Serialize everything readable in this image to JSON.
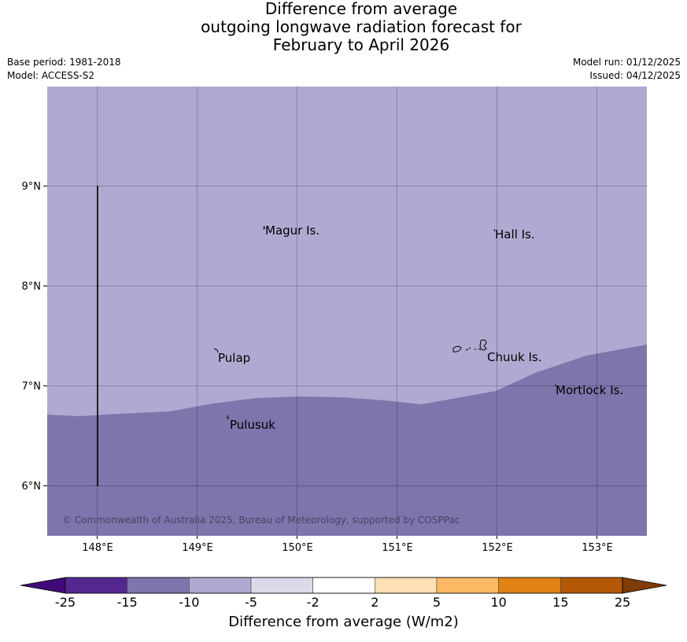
{
  "title": {
    "line1": "Difference from average",
    "line2": "outgoing longwave radiation forecast for",
    "line3": "February to April 2026"
  },
  "meta": {
    "base_period": "Base period: 1981-2018",
    "model": "Model: ACCESS-S2",
    "model_run": "Model run: 01/12/2025",
    "issued": "Issued: 04/12/2025"
  },
  "map": {
    "lon_ticks": [
      "148°E",
      "149°E",
      "150°E",
      "151°E",
      "152°E",
      "153°E"
    ],
    "lat_ticks": [
      "9°N",
      "8°N",
      "7°N",
      "6°N"
    ],
    "places": [
      "Magur Is.",
      "Hall Is.",
      "Pulap",
      "Chuuk Is.",
      "Mortlock Is.",
      "Pulusuk"
    ],
    "copyright": "© Commonwealth of Australia 2025, Bureau of Meteorology, supported by COSPPac",
    "colors": {
      "background_class": "#b0aad2",
      "lower_class": "#7f74ab"
    },
    "classes": [
      "-10 to -5",
      "-15 to -10"
    ]
  },
  "colorbar": {
    "ticks": [
      "-25",
      "-15",
      "-10",
      "-5",
      "-2",
      "2",
      "5",
      "10",
      "15",
      "25"
    ],
    "colors": [
      "#3f0a75",
      "#54278f",
      "#7f74ab",
      "#b0aad2",
      "#dadaeb",
      "#ffffff",
      "#fee0b6",
      "#fdb863",
      "#e08214",
      "#b35806",
      "#7f3b08"
    ],
    "label": "Difference from average (W/m2)"
  }
}
